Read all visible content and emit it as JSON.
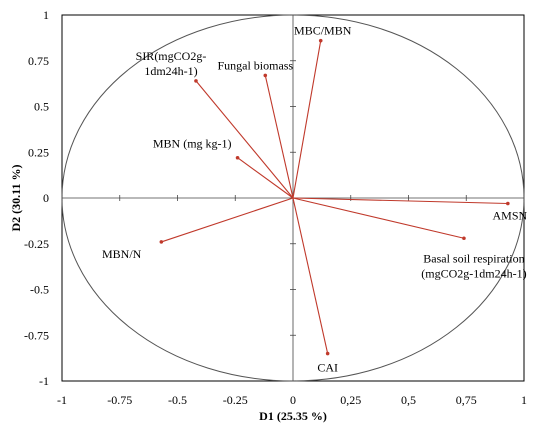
{
  "chart_data": {
    "type": "scatter",
    "title": "",
    "xlabel": "D1 (25.35 %)",
    "ylabel": "D2 (30.11 %)",
    "xlim": [
      -1,
      1
    ],
    "ylim": [
      -1,
      1
    ],
    "xticks": [
      "-1",
      "-0.75",
      "-0.5",
      "-0.25",
      "0",
      "0,25",
      "0,5",
      "0,75",
      "1"
    ],
    "yticks": [
      "1",
      "0.75",
      "0.5",
      "0.25",
      "0",
      "-0.25",
      "-0.5",
      "-0.75",
      "-1"
    ],
    "correlation_circle": true,
    "vector_color": "#c0392b",
    "vectors": [
      {
        "lines": [
          "MBC/MBN"
        ],
        "x": 0.12,
        "y": 0.86
      },
      {
        "lines": [
          "Fungal biomass"
        ],
        "x": -0.12,
        "y": 0.67
      },
      {
        "lines": [
          "SIR(mgCO2g-",
          "1dm24h-1)"
        ],
        "x": -0.42,
        "y": 0.64
      },
      {
        "lines": [
          "MBN (mg kg-1)"
        ],
        "x": -0.24,
        "y": 0.22
      },
      {
        "lines": [
          "MBN/N"
        ],
        "x": -0.57,
        "y": -0.24
      },
      {
        "lines": [
          "AMSN"
        ],
        "x": 0.93,
        "y": -0.03
      },
      {
        "lines": [
          "Basal soil respiration",
          "(mgCO2g-1dm24h-1)"
        ],
        "x": 0.74,
        "y": -0.22
      },
      {
        "lines": [
          "CAI"
        ],
        "x": 0.15,
        "y": -0.85
      }
    ]
  }
}
